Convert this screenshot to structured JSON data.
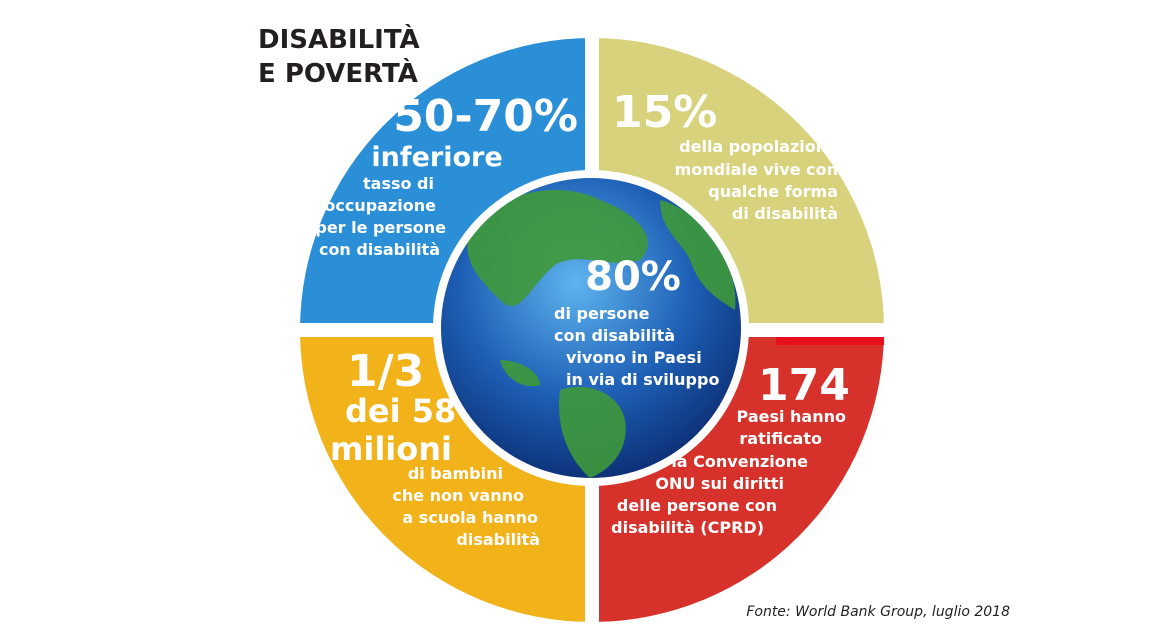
{
  "header": {
    "title_lines": [
      "DISABILITÀ",
      "E POVERTÀ"
    ]
  },
  "sections": {
    "top_left": {
      "figure": "50-70%",
      "subtitle": "inferiore",
      "lines": [
        "tasso di",
        "occupazione",
        "per le persone",
        "con disabilità"
      ]
    },
    "top_right": {
      "figure": "15%",
      "lines": [
        "della popolazione",
        "mondiale vive con",
        "qualche forma",
        "di disabilità"
      ]
    },
    "center": {
      "figure": "80%",
      "lines": [
        "di persone",
        "con disabilità",
        "vivono in Paesi",
        "in via di sviluppo"
      ]
    },
    "bottom_left": {
      "figure": "1/3",
      "subtitle_lines": [
        "dei 58",
        "milioni"
      ],
      "lines": [
        "di bambini",
        "che non vanno",
        "a scuola hanno",
        "disabilità"
      ]
    },
    "bottom_right": {
      "figure": "174",
      "lines": [
        "Paesi hanno",
        "ratificato",
        "la Convenzione",
        "ONU sui diritti",
        "delle persone con",
        "disabilità (CPRD)"
      ]
    }
  },
  "footer": {
    "source": "Fonte: World Bank Group, luglio 2018"
  }
}
